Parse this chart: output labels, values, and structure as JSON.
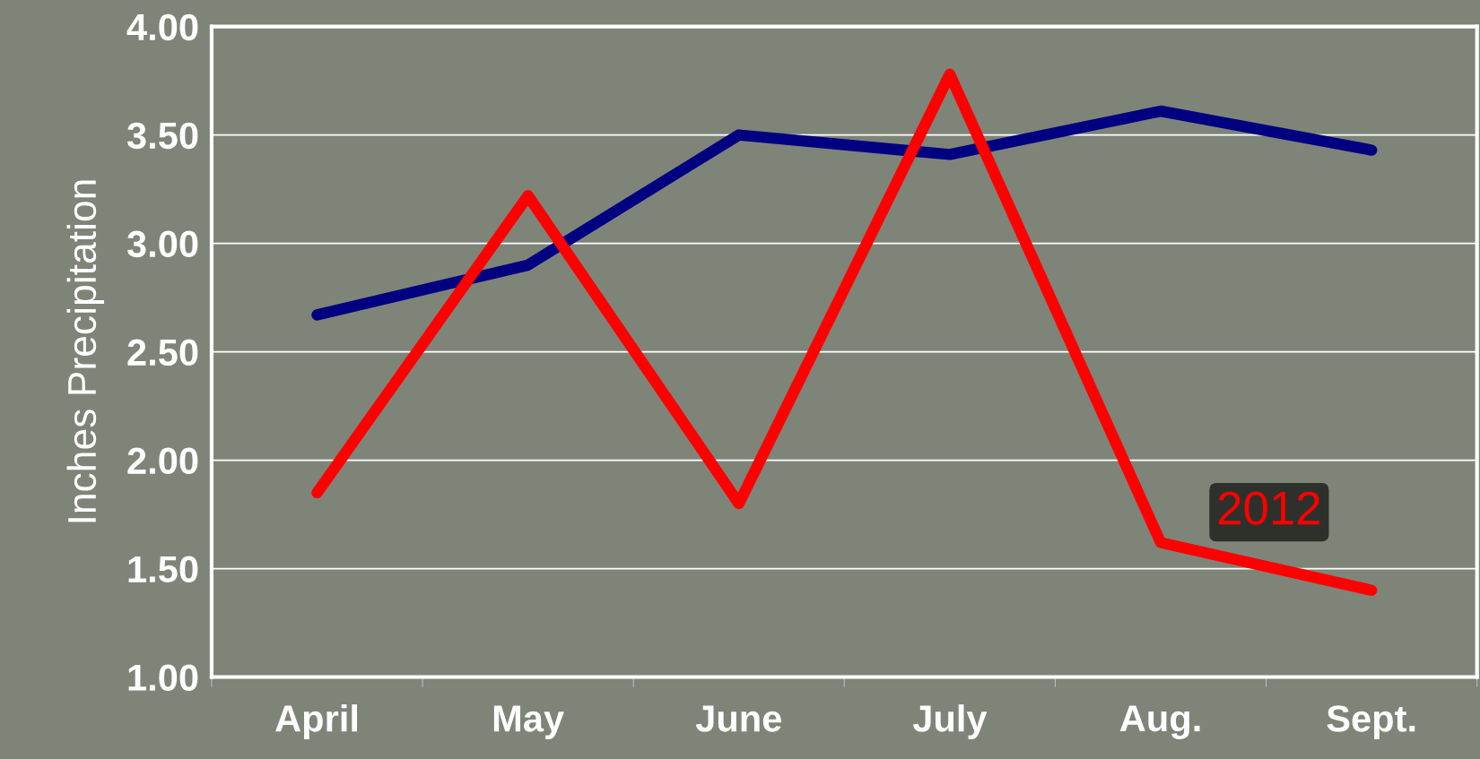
{
  "chart_data": {
    "type": "line",
    "ylabel": "Inches Precipitation",
    "categories": [
      "April",
      "May",
      "June",
      "July",
      "Aug.",
      "Sept."
    ],
    "series": [
      {
        "color": "#000080",
        "values": [
          2.67,
          2.9,
          3.5,
          3.41,
          3.61,
          3.43
        ]
      },
      {
        "name": "2012",
        "color": "#ff0000",
        "values": [
          1.85,
          3.22,
          1.8,
          3.78,
          1.62,
          1.4
        ]
      }
    ],
    "ylim": [
      1.0,
      4.0
    ],
    "yticks": [
      {
        "value": 1.0,
        "label": "1.00"
      },
      {
        "value": 1.5,
        "label": "1.50"
      },
      {
        "value": 2.0,
        "label": "2.00"
      },
      {
        "value": 2.5,
        "label": "2.50"
      },
      {
        "value": 3.0,
        "label": "3.00"
      },
      {
        "value": 3.5,
        "label": "3.50"
      },
      {
        "value": 4.0,
        "label": "4.00"
      }
    ],
    "grid": "y",
    "line_style": "solid"
  }
}
